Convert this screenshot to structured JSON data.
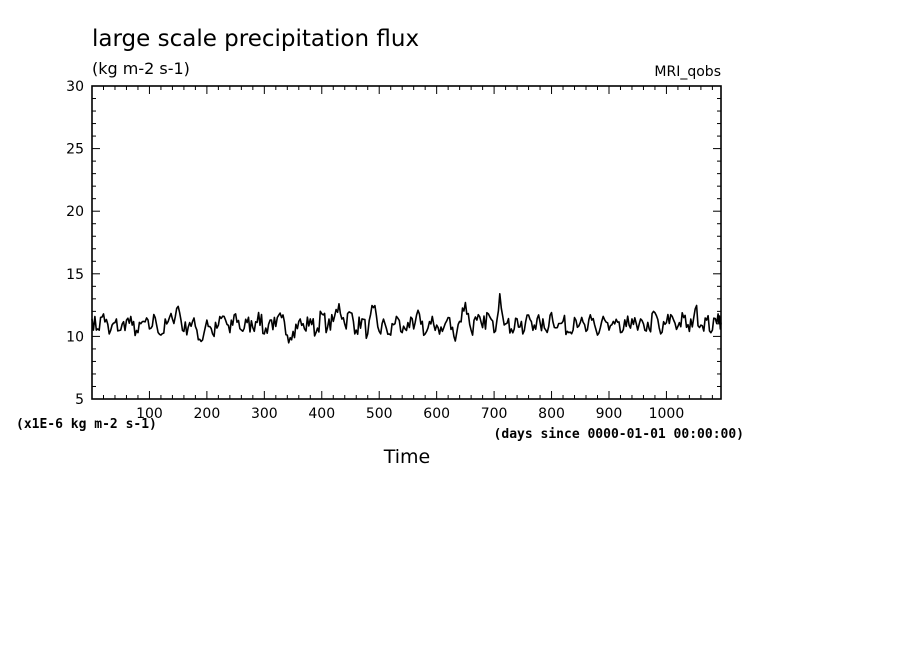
{
  "chart_data": {
    "type": "line",
    "title": "large scale precipitation flux",
    "units_label": "(kg m-2 s-1)",
    "model_label": "MRI_qobs",
    "xlabel": "Time",
    "x_units_note": "(days since 0000-01-01 00:00:00)",
    "y_scale_note": "(x1E-6 kg m-2 s-1)",
    "xlim": [
      0,
      1095
    ],
    "ylim": [
      5,
      30
    ],
    "x_ticks": [
      100,
      200,
      300,
      400,
      500,
      600,
      700,
      800,
      900,
      1000
    ],
    "y_ticks": [
      5,
      10,
      15,
      20,
      25,
      30
    ],
    "x_tick_labels": [
      "100",
      "200",
      "300",
      "400",
      "500",
      "600",
      "700",
      "800",
      "900",
      "1000"
    ],
    "y_tick_labels": [
      "5",
      "10",
      "15",
      "20",
      "25",
      "30"
    ],
    "grid": false,
    "series": [
      {
        "color": "#000000",
        "x": [
          0,
          10,
          20,
          30,
          40,
          50,
          60,
          70,
          80,
          90,
          100,
          110,
          120,
          130,
          140,
          150,
          160,
          170,
          180,
          190,
          200,
          210,
          220,
          230,
          240,
          250,
          260,
          270,
          280,
          290,
          300,
          310,
          320,
          330,
          340,
          350,
          360,
          370,
          380,
          390,
          400,
          410,
          420,
          430,
          440,
          450,
          460,
          470,
          480,
          490,
          500,
          510,
          520,
          530,
          540,
          550,
          560,
          570,
          580,
          590,
          600,
          610,
          620,
          630,
          640,
          650,
          660,
          670,
          680,
          690,
          700,
          710,
          720,
          730,
          740,
          750,
          760,
          770,
          780,
          790,
          800,
          810,
          820,
          830,
          840,
          850,
          860,
          870,
          880,
          890,
          900,
          910,
          920,
          930,
          940,
          950,
          960,
          970,
          980,
          990,
          1000,
          1010,
          1020,
          1030,
          1040,
          1050,
          1060,
          1070,
          1080,
          1090,
          1095
        ],
        "y": [
          11.4,
          10.6,
          11.8,
          10.2,
          11.1,
          10.5,
          11.3,
          10.9,
          10.3,
          11.2,
          10.6,
          11.5,
          10.1,
          11.0,
          11.4,
          12.4,
          10.4,
          11.1,
          10.8,
          9.6,
          11.3,
          10.2,
          10.9,
          11.6,
          10.3,
          11.8,
          10.5,
          11.1,
          10.7,
          11.9,
          10.2,
          11.3,
          10.8,
          11.5,
          10.1,
          10.4,
          11.2,
          10.6,
          11.4,
          10.3,
          11.8,
          10.7,
          11.2,
          12.6,
          11.0,
          11.9,
          10.5,
          11.4,
          10.2,
          12.3,
          10.4,
          11.0,
          10.1,
          11.6,
          10.3,
          11.1,
          10.6,
          11.8,
          10.2,
          11.0,
          10.9,
          10.4,
          11.5,
          10.0,
          11.2,
          12.7,
          10.5,
          11.3,
          10.7,
          11.8,
          10.3,
          13.4,
          11.0,
          10.6,
          11.4,
          10.2,
          11.7,
          10.9,
          11.1,
          10.5,
          11.9,
          10.7,
          11.2,
          10.3,
          11.5,
          11.1,
          10.4,
          11.3,
          10.1,
          11.6,
          10.5,
          11.0,
          10.3,
          10.8,
          11.4,
          10.5,
          11.0,
          10.6,
          11.9,
          10.2,
          11.1,
          11.6,
          10.8,
          11.5,
          10.4,
          12.2,
          10.9,
          11.3,
          10.5,
          11.8,
          11.1
        ]
      }
    ]
  }
}
